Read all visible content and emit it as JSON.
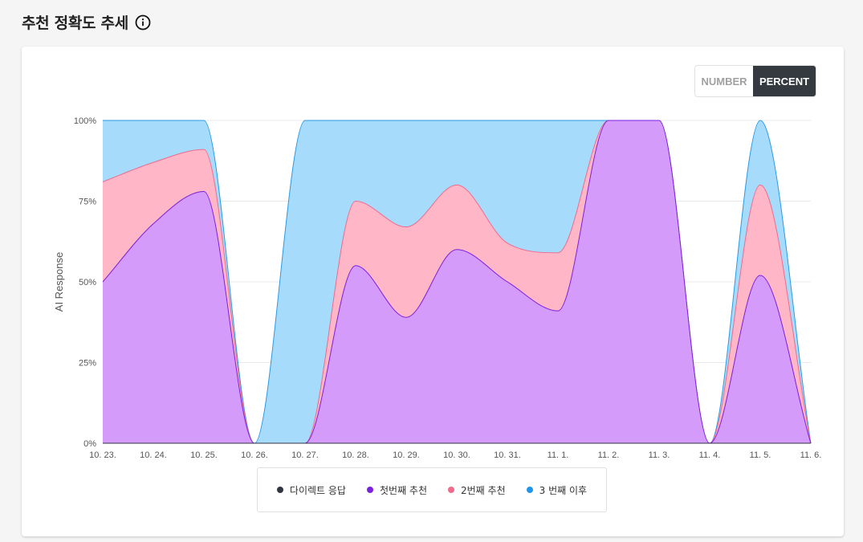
{
  "header": {
    "title": "추천 정확도 추세"
  },
  "toggle": {
    "options": [
      {
        "label": "NUMBER",
        "active": false
      },
      {
        "label": "PERCENT",
        "active": true
      }
    ]
  },
  "legend": {
    "items": [
      {
        "label": "다이렉트 응답",
        "color": "#2f3640"
      },
      {
        "label": "첫번째 추천",
        "color": "#7b1fe0"
      },
      {
        "label": "2번째 추천",
        "color": "#f06a8a"
      },
      {
        "label": "3 번째 이후",
        "color": "#2196e8"
      }
    ]
  },
  "chart_data": {
    "type": "area",
    "stacked": true,
    "ylabel": "AI Response",
    "xlabel": "",
    "ylim": [
      0,
      100
    ],
    "y_ticks": [
      "0%",
      "25%",
      "50%",
      "75%",
      "100%"
    ],
    "y_tick_values": [
      0,
      25,
      50,
      75,
      100
    ],
    "categories": [
      "10. 23.",
      "10. 24.",
      "10. 25.",
      "10. 26.",
      "10. 27.",
      "10. 28.",
      "10. 29.",
      "10. 30.",
      "10. 31.",
      "11. 1.",
      "11. 2.",
      "11. 3.",
      "11. 4.",
      "11. 5.",
      "11. 6."
    ],
    "grid": true,
    "series": [
      {
        "name": "다이렉트 응답",
        "color": "#2f3640",
        "fill": "#2f3640",
        "values": [
          0,
          0,
          0,
          0,
          0,
          0,
          0,
          0,
          0,
          0,
          0,
          0,
          0,
          0,
          0
        ]
      },
      {
        "name": "첫번째 추천",
        "color": "#7b1fe0",
        "fill": "#d59bfb",
        "values": [
          50,
          68,
          78,
          0,
          0,
          55,
          39,
          60,
          50,
          41,
          100,
          100,
          0,
          52,
          0
        ]
      },
      {
        "name": "2번째 추천",
        "color": "#ee6b8d",
        "fill": "#ffb6c6",
        "values": [
          31,
          19,
          13,
          0,
          0,
          20,
          28,
          20,
          12,
          18,
          0,
          0,
          0,
          28,
          0
        ]
      },
      {
        "name": "3 번째 이후",
        "color": "#2a9ae6",
        "fill": "#a7dbfc",
        "values": [
          19,
          13,
          9,
          0,
          100,
          25,
          33,
          20,
          38,
          41,
          0,
          0,
          0,
          20,
          0
        ]
      }
    ]
  }
}
